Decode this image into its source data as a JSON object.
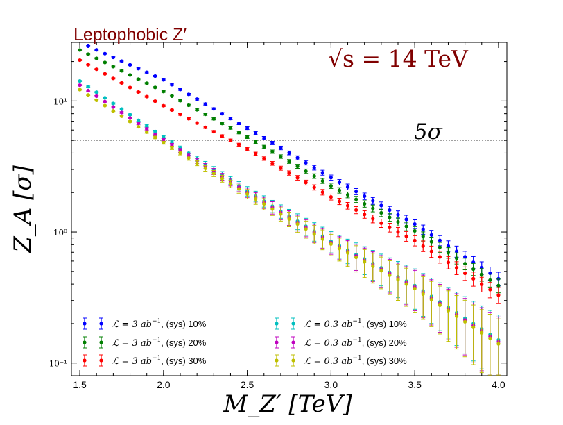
{
  "chart_data": {
    "type": "scatter",
    "title": "Leptophobic Z′",
    "energy_label": "√s = 14 TeV",
    "reference_line": {
      "value": 5,
      "label": "5σ"
    },
    "xlabel": "M_Z′ [TeV]",
    "ylabel": "Z_A [σ]",
    "xlim": [
      1.45,
      4.05
    ],
    "ylim": [
      0.08,
      28
    ],
    "yscale": "log",
    "x_ticks": [
      1.5,
      2.0,
      2.5,
      3.0,
      3.5,
      4.0
    ],
    "x_tick_labels": [
      "1.5",
      "2.0",
      "2.5",
      "3.0",
      "3.5",
      "4.0"
    ],
    "y_ticks": [
      0.1,
      1,
      10
    ],
    "y_tick_labels": [
      "10⁻¹",
      "10⁰",
      "10¹"
    ],
    "x_range": {
      "start": 1.5,
      "end": 4.0,
      "step": 0.05
    },
    "series": [
      {
        "name": "L = 3 ab⁻¹, (sys) 10%",
        "lumi": "3",
        "sys": "(sys) 10%",
        "color": "#0000ff",
        "marker": "circle",
        "anchors": [
          [
            1.5,
            28
          ],
          [
            2.0,
            14.5
          ],
          [
            2.5,
            6.2
          ],
          [
            3.0,
            2.6
          ],
          [
            3.5,
            1.15
          ],
          [
            4.0,
            0.44
          ]
        ],
        "err_start": 0.01,
        "err_end": 0.12
      },
      {
        "name": "L = 3 ab⁻¹, (sys) 20%",
        "lumi": "3",
        "sys": "(sys) 20%",
        "color": "#007f00",
        "marker": "circle",
        "anchors": [
          [
            1.5,
            24.5
          ],
          [
            2.0,
            11.8
          ],
          [
            2.5,
            5.3
          ],
          [
            3.0,
            2.25
          ],
          [
            3.5,
            1.02
          ],
          [
            4.0,
            0.39
          ]
        ],
        "err_start": 0.01,
        "err_end": 0.12
      },
      {
        "name": "L = 3 ab⁻¹, (sys) 30%",
        "lumi": "3",
        "sys": "(sys) 30%",
        "color": "#ff0000",
        "marker": "circle",
        "anchors": [
          [
            1.5,
            20.5
          ],
          [
            2.0,
            9.2
          ],
          [
            2.5,
            4.3
          ],
          [
            3.0,
            1.85
          ],
          [
            3.5,
            0.86
          ],
          [
            4.0,
            0.33
          ]
        ],
        "err_start": 0.01,
        "err_end": 0.14
      },
      {
        "name": "L = 0.3 ab⁻¹, (sys) 10%",
        "lumi": "0.3",
        "sys": "(sys) 10%",
        "color": "#00bfbf",
        "marker": "circle",
        "anchors": [
          [
            1.5,
            14.2
          ],
          [
            2.0,
            5.3
          ],
          [
            2.5,
            2.05
          ],
          [
            3.0,
            0.85
          ],
          [
            3.5,
            0.39
          ],
          [
            4.0,
            0.15
          ]
        ],
        "err_start": 0.01,
        "err_end": 0.55
      },
      {
        "name": "L = 0.3 ab⁻¹, (sys) 20%",
        "lumi": "0.3",
        "sys": "(sys) 20%",
        "color": "#bf00bf",
        "marker": "circle",
        "anchors": [
          [
            1.5,
            13.2
          ],
          [
            2.0,
            5.05
          ],
          [
            2.5,
            2.0
          ],
          [
            3.0,
            0.83
          ],
          [
            3.5,
            0.38
          ],
          [
            4.0,
            0.145
          ]
        ],
        "err_start": 0.01,
        "err_end": 0.55
      },
      {
        "name": "L = 0.3 ab⁻¹, (sys) 30%",
        "lumi": "0.3",
        "sys": "(sys) 30%",
        "color": "#bfbf00",
        "marker": "circle",
        "anchors": [
          [
            1.5,
            12.2
          ],
          [
            2.0,
            4.8
          ],
          [
            2.5,
            1.95
          ],
          [
            3.0,
            0.81
          ],
          [
            3.5,
            0.37
          ],
          [
            4.0,
            0.14
          ]
        ],
        "err_start": 0.01,
        "err_end": 0.55
      }
    ],
    "legend": {
      "placement": "lower-left",
      "columns": 2
    }
  }
}
